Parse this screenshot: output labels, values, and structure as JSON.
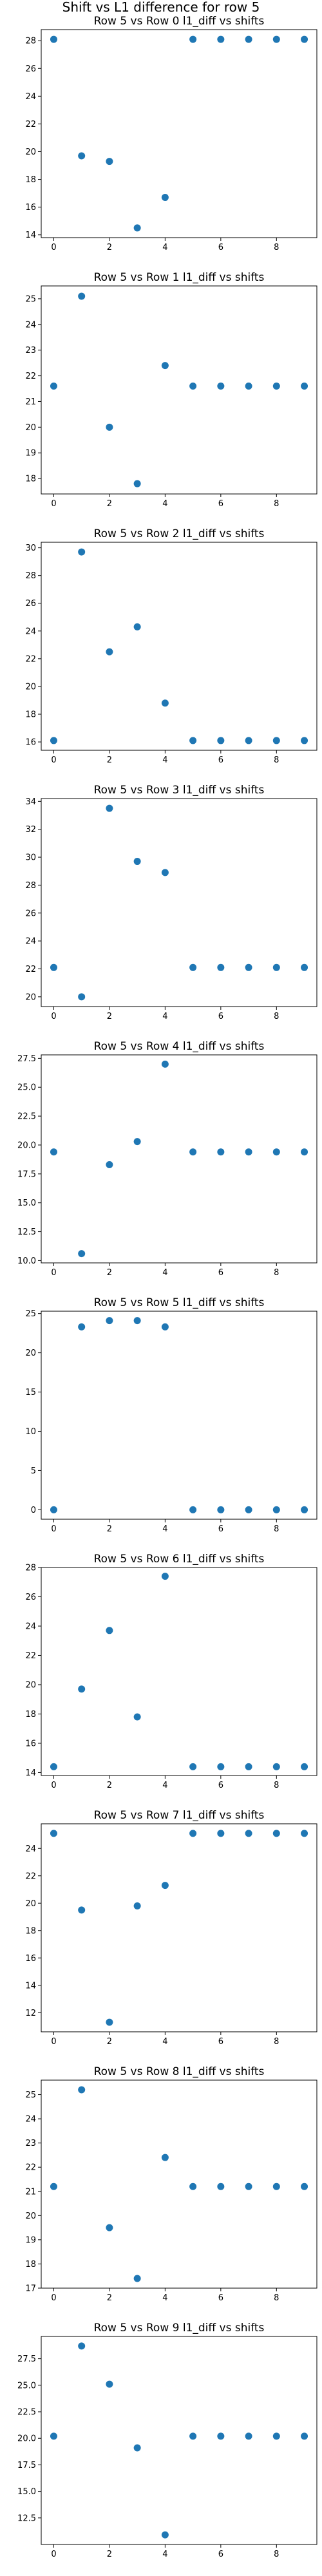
{
  "chart_data": {
    "type": "scatter",
    "title": "Shift vs L1 difference for row 5",
    "panels": [
      {
        "title": "Row 5 vs Row 0 l1_diff vs shifts",
        "x": [
          0,
          1,
          2,
          3,
          4,
          5,
          6,
          7,
          8,
          9
        ],
        "y": [
          28.1,
          19.7,
          19.3,
          14.5,
          16.7,
          28.1,
          28.1,
          28.1,
          28.1,
          28.1
        ],
        "ylim": [
          13.8,
          28.8
        ],
        "yticks": [
          {
            "v": 14,
            "label": "14"
          },
          {
            "v": 16,
            "label": "16"
          },
          {
            "v": 18,
            "label": "18"
          },
          {
            "v": 20,
            "label": "20"
          },
          {
            "v": 22,
            "label": "22"
          },
          {
            "v": 24,
            "label": "24"
          },
          {
            "v": 26,
            "label": "26"
          },
          {
            "v": 28,
            "label": "28"
          }
        ]
      },
      {
        "title": "Row 5 vs Row 1 l1_diff vs shifts",
        "x": [
          0,
          1,
          2,
          3,
          4,
          5,
          6,
          7,
          8,
          9
        ],
        "y": [
          21.6,
          25.1,
          20.0,
          17.8,
          22.4,
          21.6,
          21.6,
          21.6,
          21.6,
          21.6
        ],
        "ylim": [
          17.4,
          25.5
        ],
        "yticks": [
          {
            "v": 18,
            "label": "18"
          },
          {
            "v": 19,
            "label": "19"
          },
          {
            "v": 20,
            "label": "20"
          },
          {
            "v": 21,
            "label": "21"
          },
          {
            "v": 22,
            "label": "22"
          },
          {
            "v": 23,
            "label": "23"
          },
          {
            "v": 24,
            "label": "24"
          },
          {
            "v": 25,
            "label": "25"
          }
        ]
      },
      {
        "title": "Row 5 vs Row 2 l1_diff vs shifts",
        "x": [
          0,
          1,
          2,
          3,
          4,
          5,
          6,
          7,
          8,
          9
        ],
        "y": [
          16.1,
          29.7,
          22.5,
          24.3,
          18.8,
          16.1,
          16.1,
          16.1,
          16.1,
          16.1
        ],
        "ylim": [
          15.4,
          30.4
        ],
        "yticks": [
          {
            "v": 16,
            "label": "16"
          },
          {
            "v": 18,
            "label": "18"
          },
          {
            "v": 20,
            "label": "20"
          },
          {
            "v": 22,
            "label": "22"
          },
          {
            "v": 24,
            "label": "24"
          },
          {
            "v": 26,
            "label": "26"
          },
          {
            "v": 28,
            "label": "28"
          },
          {
            "v": 30,
            "label": "30"
          }
        ]
      },
      {
        "title": "Row 5 vs Row 3 l1_diff vs shifts",
        "x": [
          0,
          1,
          2,
          3,
          4,
          5,
          6,
          7,
          8,
          9
        ],
        "y": [
          22.1,
          20.0,
          33.5,
          29.7,
          28.9,
          22.1,
          22.1,
          22.1,
          22.1,
          22.1
        ],
        "ylim": [
          19.3,
          34.2
        ],
        "yticks": [
          {
            "v": 20,
            "label": "20"
          },
          {
            "v": 22,
            "label": "22"
          },
          {
            "v": 24,
            "label": "24"
          },
          {
            "v": 26,
            "label": "26"
          },
          {
            "v": 28,
            "label": "28"
          },
          {
            "v": 30,
            "label": "30"
          },
          {
            "v": 32,
            "label": "32"
          },
          {
            "v": 34,
            "label": "34"
          }
        ]
      },
      {
        "title": "Row 5 vs Row 4 l1_diff vs shifts",
        "x": [
          0,
          1,
          2,
          3,
          4,
          5,
          6,
          7,
          8,
          9
        ],
        "y": [
          19.4,
          10.6,
          18.3,
          20.3,
          27.0,
          19.4,
          19.4,
          19.4,
          19.4,
          19.4
        ],
        "ylim": [
          9.8,
          27.8
        ],
        "yticks": [
          {
            "v": 10,
            "label": "10.0"
          },
          {
            "v": 12.5,
            "label": "12.5"
          },
          {
            "v": 15,
            "label": "15.0"
          },
          {
            "v": 17.5,
            "label": "17.5"
          },
          {
            "v": 20,
            "label": "20.0"
          },
          {
            "v": 22.5,
            "label": "22.5"
          },
          {
            "v": 25,
            "label": "25.0"
          },
          {
            "v": 27.5,
            "label": "27.5"
          }
        ]
      },
      {
        "title": "Row 5 vs Row 5 l1_diff vs shifts",
        "x": [
          0,
          1,
          2,
          3,
          4,
          5,
          6,
          7,
          8,
          9
        ],
        "y": [
          0.0,
          23.3,
          24.1,
          24.1,
          23.3,
          0.0,
          0.0,
          0.0,
          0.0,
          0.0
        ],
        "ylim": [
          -1.2,
          25.3
        ],
        "yticks": [
          {
            "v": 0,
            "label": "0"
          },
          {
            "v": 5,
            "label": "5"
          },
          {
            "v": 10,
            "label": "10"
          },
          {
            "v": 15,
            "label": "15"
          },
          {
            "v": 20,
            "label": "20"
          },
          {
            "v": 25,
            "label": "25"
          }
        ]
      },
      {
        "title": "Row 5 vs Row 6 l1_diff vs shifts",
        "x": [
          0,
          1,
          2,
          3,
          4,
          5,
          6,
          7,
          8,
          9
        ],
        "y": [
          14.4,
          19.7,
          23.7,
          17.8,
          27.4,
          14.4,
          14.4,
          14.4,
          14.4,
          14.4
        ],
        "ylim": [
          13.8,
          28.0
        ],
        "yticks": [
          {
            "v": 14,
            "label": "14"
          },
          {
            "v": 16,
            "label": "16"
          },
          {
            "v": 18,
            "label": "18"
          },
          {
            "v": 20,
            "label": "20"
          },
          {
            "v": 22,
            "label": "22"
          },
          {
            "v": 24,
            "label": "24"
          },
          {
            "v": 26,
            "label": "26"
          },
          {
            "v": 28,
            "label": "28"
          }
        ]
      },
      {
        "title": "Row 5 vs Row 7 l1_diff vs shifts",
        "x": [
          0,
          1,
          2,
          3,
          4,
          5,
          6,
          7,
          8,
          9
        ],
        "y": [
          25.1,
          19.5,
          11.3,
          19.8,
          21.3,
          25.1,
          25.1,
          25.1,
          25.1,
          25.1
        ],
        "ylim": [
          10.6,
          25.8
        ],
        "yticks": [
          {
            "v": 12,
            "label": "12"
          },
          {
            "v": 14,
            "label": "14"
          },
          {
            "v": 16,
            "label": "16"
          },
          {
            "v": 18,
            "label": "18"
          },
          {
            "v": 20,
            "label": "20"
          },
          {
            "v": 22,
            "label": "22"
          },
          {
            "v": 24,
            "label": "24"
          }
        ]
      },
      {
        "title": "Row 5 vs Row 8 l1_diff vs shifts",
        "x": [
          0,
          1,
          2,
          3,
          4,
          5,
          6,
          7,
          8,
          9
        ],
        "y": [
          21.2,
          25.2,
          19.5,
          17.4,
          22.4,
          21.2,
          21.2,
          21.2,
          21.2,
          21.2
        ],
        "ylim": [
          17.0,
          25.6
        ],
        "yticks": [
          {
            "v": 17,
            "label": "17"
          },
          {
            "v": 18,
            "label": "18"
          },
          {
            "v": 19,
            "label": "19"
          },
          {
            "v": 20,
            "label": "20"
          },
          {
            "v": 21,
            "label": "21"
          },
          {
            "v": 22,
            "label": "22"
          },
          {
            "v": 23,
            "label": "23"
          },
          {
            "v": 24,
            "label": "24"
          },
          {
            "v": 25,
            "label": "25"
          }
        ]
      },
      {
        "title": "Row 5 vs Row 9 l1_diff vs shifts",
        "x": [
          0,
          1,
          2,
          3,
          4,
          5,
          6,
          7,
          8,
          9
        ],
        "y": [
          20.2,
          28.7,
          25.1,
          19.1,
          10.9,
          20.2,
          20.2,
          20.2,
          20.2,
          20.2
        ],
        "ylim": [
          10.0,
          29.6
        ],
        "yticks": [
          {
            "v": 12.5,
            "label": "12.5"
          },
          {
            "v": 15,
            "label": "15.0"
          },
          {
            "v": 17.5,
            "label": "17.5"
          },
          {
            "v": 20,
            "label": "20.0"
          },
          {
            "v": 22.5,
            "label": "22.5"
          },
          {
            "v": 25,
            "label": "25.0"
          },
          {
            "v": 27.5,
            "label": "27.5"
          }
        ]
      }
    ],
    "xlim": [
      -0.45,
      9.45
    ],
    "xticks": [
      {
        "v": 0,
        "label": "0"
      },
      {
        "v": 2,
        "label": "2"
      },
      {
        "v": 4,
        "label": "4"
      },
      {
        "v": 6,
        "label": "6"
      },
      {
        "v": 8,
        "label": "8"
      }
    ],
    "grid": false,
    "colors": {
      "points": "#1f77b4",
      "axes": "#000000"
    }
  }
}
